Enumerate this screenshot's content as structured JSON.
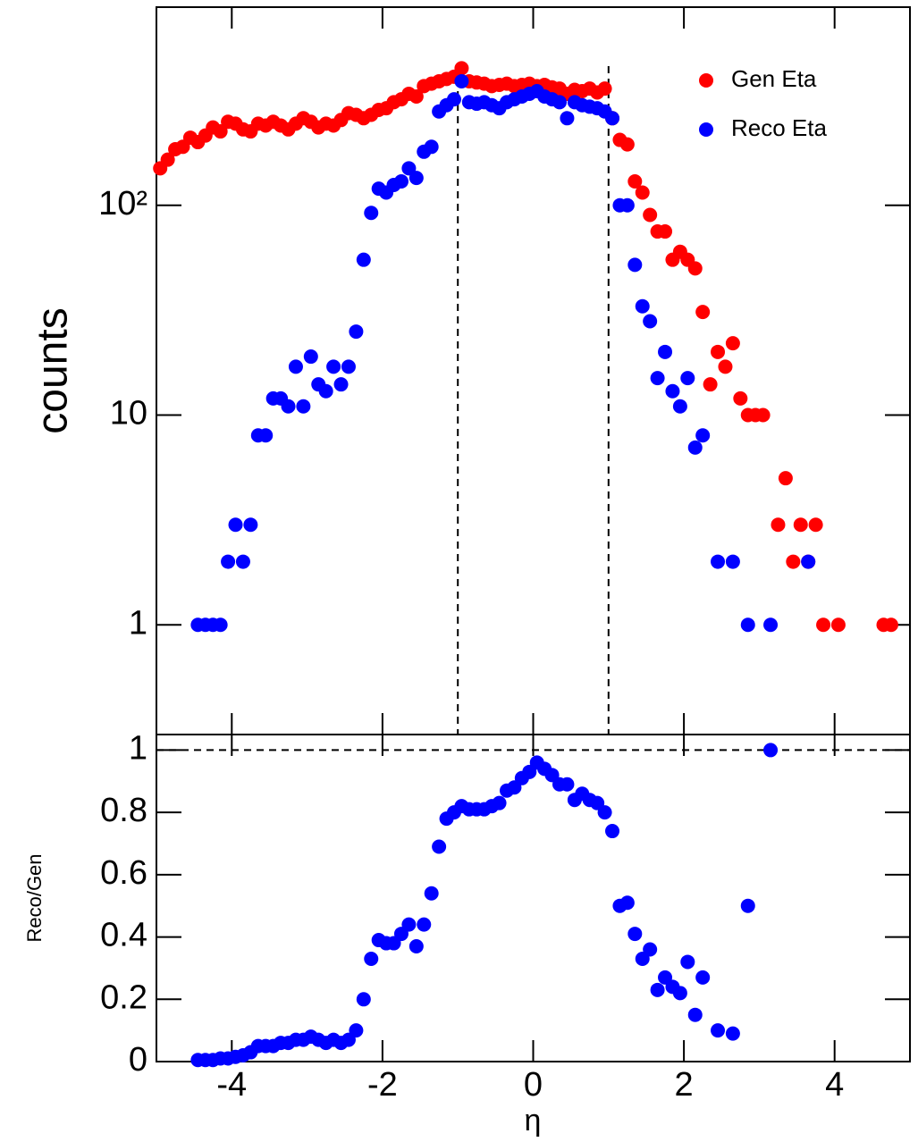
{
  "chart_data": [
    {
      "type": "scatter",
      "ylabel": "counts",
      "log_y": true,
      "legend": "top-right",
      "x": [
        -4.95,
        -4.85,
        -4.75,
        -4.65,
        -4.55,
        -4.45,
        -4.35,
        -4.25,
        -4.15,
        -4.05,
        -3.95,
        -3.85,
        -3.75,
        -3.65,
        -3.55,
        -3.45,
        -3.35,
        -3.25,
        -3.15,
        -3.05,
        -2.95,
        -2.85,
        -2.75,
        -2.65,
        -2.55,
        -2.45,
        -2.35,
        -2.25,
        -2.15,
        -2.05,
        -1.95,
        -1.85,
        -1.75,
        -1.65,
        -1.55,
        -1.45,
        -1.35,
        -1.25,
        -1.15,
        -1.05,
        -0.95,
        -0.85,
        -0.75,
        -0.65,
        -0.55,
        -0.45,
        -0.35,
        -0.25,
        -0.15,
        -0.05,
        0.05,
        0.15,
        0.25,
        0.35,
        0.45,
        0.55,
        0.65,
        0.75,
        0.85,
        0.95,
        1.05,
        1.15,
        1.25,
        1.35,
        1.45,
        1.55,
        1.65,
        1.75,
        1.85,
        1.95,
        2.05,
        2.15,
        2.25,
        2.35,
        2.45,
        2.55,
        2.65,
        2.75,
        2.85,
        2.95,
        3.05,
        3.15,
        3.25,
        3.35,
        3.45,
        3.55,
        3.65,
        3.75,
        3.85,
        3.95,
        4.05,
        4.15,
        4.25,
        4.35,
        4.45,
        4.55,
        4.65,
        4.75,
        4.85,
        4.95
      ],
      "series": [
        {
          "name": "Gen Eta",
          "color": "#ff0000",
          "values": [
            150,
            165,
            185,
            190,
            210,
            200,
            215,
            235,
            225,
            250,
            245,
            230,
            225,
            245,
            240,
            250,
            240,
            230,
            245,
            260,
            250,
            235,
            245,
            240,
            255,
            275,
            270,
            260,
            270,
            285,
            290,
            310,
            320,
            340,
            330,
            370,
            380,
            390,
            400,
            410,
            450,
            390,
            385,
            380,
            370,
            375,
            380,
            370,
            375,
            380,
            370,
            375,
            365,
            360,
            340,
            355,
            350,
            360,
            345,
            360,
            260,
            205,
            195,
            130,
            115,
            90,
            75,
            75,
            55,
            60,
            55,
            50,
            31,
            14,
            20,
            17,
            22,
            12,
            10,
            10,
            10,
            null,
            3,
            5,
            2,
            3,
            2,
            3,
            1,
            null,
            1,
            null,
            null,
            null,
            null,
            null,
            1,
            1,
            null,
            null
          ]
        },
        {
          "name": "Reco Eta",
          "color": "#0000ff",
          "values": [
            null,
            null,
            null,
            null,
            null,
            1,
            1,
            1,
            1,
            2,
            3,
            2,
            3,
            8,
            8,
            12,
            12,
            11,
            17,
            11,
            19,
            14,
            13,
            17,
            14,
            17,
            25,
            55,
            92,
            120,
            115,
            125,
            130,
            150,
            135,
            180,
            190,
            280,
            300,
            320,
            390,
            310,
            305,
            310,
            300,
            290,
            310,
            320,
            330,
            340,
            350,
            330,
            320,
            310,
            260,
            310,
            300,
            295,
            290,
            280,
            260,
            100,
            100,
            52,
            33,
            28,
            15,
            20,
            13,
            11,
            15,
            7,
            8,
            null,
            2,
            null,
            2,
            null,
            1,
            null,
            null,
            1,
            null,
            null,
            null,
            null,
            2,
            null,
            null,
            null,
            null,
            null,
            null,
            null,
            null,
            null,
            null,
            null,
            null,
            null
          ]
        }
      ],
      "xlim": [
        -5,
        5
      ],
      "xticks": [
        -4,
        -2,
        0,
        2,
        4
      ],
      "ylim": [
        0.3,
        880
      ],
      "yticks": [
        1,
        10,
        {
          "value": 100,
          "label": "10²"
        }
      ],
      "vlines": [
        -1,
        1
      ]
    },
    {
      "type": "scatter",
      "xlabel": "η",
      "ylabel": "Reco/Gen",
      "color": "#0000ff",
      "x": [
        -4.95,
        -4.85,
        -4.75,
        -4.65,
        -4.55,
        -4.45,
        -4.35,
        -4.25,
        -4.15,
        -4.05,
        -3.95,
        -3.85,
        -3.75,
        -3.65,
        -3.55,
        -3.45,
        -3.35,
        -3.25,
        -3.15,
        -3.05,
        -2.95,
        -2.85,
        -2.75,
        -2.65,
        -2.55,
        -2.45,
        -2.35,
        -2.25,
        -2.15,
        -2.05,
        -1.95,
        -1.85,
        -1.75,
        -1.65,
        -1.55,
        -1.45,
        -1.35,
        -1.25,
        -1.15,
        -1.05,
        -0.95,
        -0.85,
        -0.75,
        -0.65,
        -0.55,
        -0.45,
        -0.35,
        -0.25,
        -0.15,
        -0.05,
        0.05,
        0.15,
        0.25,
        0.35,
        0.45,
        0.55,
        0.65,
        0.75,
        0.85,
        0.95,
        1.05,
        1.15,
        1.25,
        1.35,
        1.45,
        1.55,
        1.65,
        1.75,
        1.85,
        1.95,
        2.05,
        2.15,
        2.25,
        2.35,
        2.45,
        2.55,
        2.65,
        2.75,
        2.85,
        2.95,
        3.05,
        3.15,
        3.25,
        3.35,
        3.45,
        3.55,
        3.65,
        3.75,
        3.85,
        3.95,
        4.05,
        4.15,
        4.25,
        4.35,
        4.45,
        4.55,
        4.65,
        4.75,
        4.85,
        4.95
      ],
      "values": [
        null,
        null,
        null,
        null,
        null,
        0.005,
        0.005,
        0.005,
        0.01,
        0.01,
        0.015,
        0.02,
        0.03,
        0.05,
        0.05,
        0.05,
        0.06,
        0.06,
        0.07,
        0.07,
        0.08,
        0.07,
        0.06,
        0.07,
        0.06,
        0.07,
        0.1,
        0.2,
        0.33,
        0.39,
        0.38,
        0.38,
        0.41,
        0.44,
        0.37,
        0.44,
        0.54,
        0.69,
        0.78,
        0.8,
        0.82,
        0.81,
        0.81,
        0.81,
        0.82,
        0.83,
        0.87,
        0.88,
        0.91,
        0.93,
        0.96,
        0.94,
        0.92,
        0.89,
        0.89,
        0.84,
        0.86,
        0.84,
        0.83,
        0.8,
        0.74,
        0.5,
        0.51,
        0.41,
        0.33,
        0.36,
        0.23,
        0.27,
        0.24,
        0.22,
        0.32,
        0.15,
        0.27,
        null,
        0.1,
        null,
        0.09,
        null,
        0.5,
        null,
        null,
        1,
        null,
        null,
        null,
        null,
        null,
        null,
        null,
        null,
        null,
        null,
        null,
        null,
        null,
        null,
        null,
        null,
        null,
        null
      ],
      "xlim": [
        -5,
        5
      ],
      "xticks": [
        -4,
        -2,
        0,
        2,
        4
      ],
      "ylim": [
        0,
        1.05
      ],
      "yticks": [
        0,
        0.2,
        0.4,
        0.6,
        0.8,
        1
      ],
      "hline": 1
    }
  ]
}
